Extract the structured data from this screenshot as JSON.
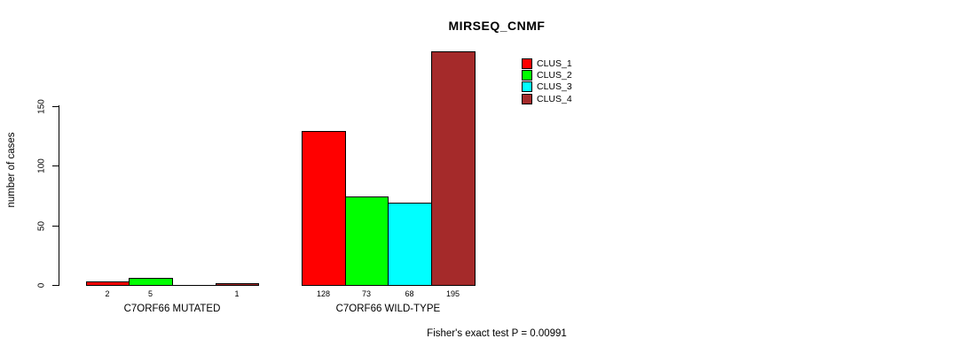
{
  "chart_data": {
    "type": "bar",
    "title": "MIRSEQ_CNMF",
    "ylabel": "number of cases",
    "xlabel": "",
    "yticks": [
      0,
      50,
      100,
      150
    ],
    "ylim": [
      0,
      150
    ],
    "grid": false,
    "legend_position": "top-right",
    "series": [
      {
        "name": "CLUS_1",
        "color": "#FF0000"
      },
      {
        "name": "CLUS_2",
        "color": "#00FF00"
      },
      {
        "name": "CLUS_3",
        "color": "#00FFFF"
      },
      {
        "name": "CLUS_4",
        "color": "#A52A2A"
      }
    ],
    "groups": [
      {
        "label": "C7ORF66 MUTATED",
        "values": [
          2,
          5,
          0,
          1
        ],
        "value_labels": [
          "2",
          "5",
          "",
          "1"
        ]
      },
      {
        "label": "C7ORF66 WILD-TYPE",
        "values": [
          128,
          73,
          68,
          195
        ],
        "value_labels": [
          "128",
          "73",
          "68",
          "195"
        ]
      }
    ],
    "annotation": "Fisher's exact test P = 0.00991",
    "colors": {
      "background": "#FFFFFF",
      "axis": "#000000",
      "text": "#000000"
    }
  }
}
